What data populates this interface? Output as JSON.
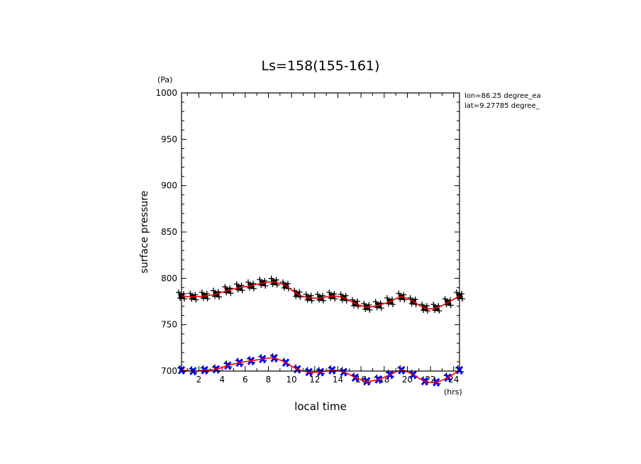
{
  "chart_data": {
    "type": "scatter",
    "title": "Ls=158(155-161)",
    "xlabel": "local time",
    "ylabel": "surface pressure",
    "x_unit": "(hrs)",
    "y_unit": "(Pa)",
    "xlim": [
      0.5,
      24.5
    ],
    "ylim": [
      700,
      1000
    ],
    "x_ticks": [
      2,
      4,
      6,
      8,
      10,
      12,
      14,
      16,
      18,
      20,
      22,
      24
    ],
    "x_tick_labels": [
      "2",
      "4",
      "6",
      "8",
      "10",
      "12",
      "14",
      "16",
      "18",
      "20",
      "22",
      "24"
    ],
    "y_ticks": [
      700,
      750,
      800,
      850,
      900,
      950,
      1000
    ],
    "y_tick_labels": [
      "700",
      "750",
      "800",
      "850",
      "900",
      "950",
      "1000"
    ],
    "annotations": [
      "lon=86.25 degree_ea",
      "lat=9.27785 degree_"
    ],
    "series": [
      {
        "marker": "square-plus",
        "color": "#000000",
        "fit_color": "#ff0000",
        "x": [
          0.5,
          1.5,
          2.5,
          3.5,
          4.5,
          5.5,
          6.5,
          7.5,
          8.5,
          9.5,
          10.5,
          11.5,
          12.5,
          13.5,
          14.5,
          15.5,
          16.5,
          17.5,
          18.5,
          19.5,
          20.5,
          21.5,
          22.5,
          23.5,
          24.5
        ],
        "values": [
          781,
          780,
          781,
          783,
          787,
          790,
          792,
          795,
          796,
          792,
          783,
          779,
          779,
          781,
          779,
          773,
          769,
          771,
          775,
          780,
          775,
          768,
          768,
          774,
          781
        ]
      },
      {
        "marker": "cross",
        "color": "#0000ff",
        "fit_color": "#ff0000",
        "x": [
          0.5,
          1.5,
          2.5,
          3.5,
          4.5,
          5.5,
          6.5,
          7.5,
          8.5,
          9.5,
          10.5,
          11.5,
          12.5,
          13.5,
          14.5,
          15.5,
          16.5,
          17.5,
          18.5,
          19.5,
          20.5,
          21.5,
          22.5,
          23.5,
          24.5
        ],
        "values": [
          701,
          700,
          701,
          702,
          706,
          709,
          711,
          713,
          714,
          709,
          702,
          699,
          699,
          701,
          699,
          693,
          689,
          691,
          696,
          701,
          696,
          689,
          688,
          693,
          701
        ]
      }
    ],
    "grid": false,
    "legend": "none"
  }
}
